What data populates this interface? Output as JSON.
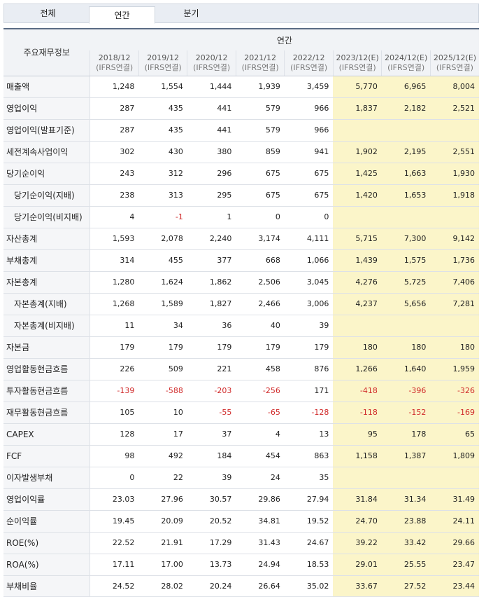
{
  "tabs": [
    {
      "label": "전체",
      "active": false
    },
    {
      "label": "연간",
      "active": true
    },
    {
      "label": "분기",
      "active": false
    }
  ],
  "table": {
    "corner_label": "주요재무정보",
    "group_label": "연간",
    "years": [
      {
        "year": "2018/12",
        "basis": "(IFRS연결)",
        "estimate": false
      },
      {
        "year": "2019/12",
        "basis": "(IFRS연결)",
        "estimate": false
      },
      {
        "year": "2020/12",
        "basis": "(IFRS연결)",
        "estimate": false
      },
      {
        "year": "2021/12",
        "basis": "(IFRS연결)",
        "estimate": false
      },
      {
        "year": "2022/12",
        "basis": "(IFRS연결)",
        "estimate": false
      },
      {
        "year": "2023/12(E)",
        "basis": "(IFRS연결)",
        "estimate": true
      },
      {
        "year": "2024/12(E)",
        "basis": "(IFRS연결)",
        "estimate": true
      },
      {
        "year": "2025/12(E)",
        "basis": "(IFRS연결)",
        "estimate": true
      }
    ],
    "rows": [
      {
        "label": "매출액",
        "indent": false,
        "values": [
          "1,248",
          "1,554",
          "1,444",
          "1,939",
          "3,459",
          "5,770",
          "6,965",
          "8,004"
        ]
      },
      {
        "label": "영업이익",
        "indent": false,
        "values": [
          "287",
          "435",
          "441",
          "579",
          "966",
          "1,837",
          "2,182",
          "2,521"
        ]
      },
      {
        "label": "영업이익(발표기준)",
        "indent": false,
        "values": [
          "287",
          "435",
          "441",
          "579",
          "966",
          "",
          "",
          ""
        ]
      },
      {
        "label": "세전계속사업이익",
        "indent": false,
        "values": [
          "302",
          "430",
          "380",
          "859",
          "941",
          "1,902",
          "2,195",
          "2,551"
        ]
      },
      {
        "label": "당기순이익",
        "indent": false,
        "values": [
          "243",
          "312",
          "296",
          "675",
          "675",
          "1,425",
          "1,663",
          "1,930"
        ]
      },
      {
        "label": "당기순이익(지배)",
        "indent": true,
        "values": [
          "238",
          "313",
          "295",
          "675",
          "675",
          "1,420",
          "1,653",
          "1,918"
        ]
      },
      {
        "label": "당기순이익(비지배)",
        "indent": true,
        "values": [
          "4",
          "-1",
          "1",
          "0",
          "0",
          "",
          "",
          ""
        ]
      },
      {
        "label": "자산총계",
        "indent": false,
        "values": [
          "1,593",
          "2,078",
          "2,240",
          "3,174",
          "4,111",
          "5,715",
          "7,300",
          "9,142"
        ]
      },
      {
        "label": "부채총계",
        "indent": false,
        "values": [
          "314",
          "455",
          "377",
          "668",
          "1,066",
          "1,439",
          "1,575",
          "1,736"
        ]
      },
      {
        "label": "자본총계",
        "indent": false,
        "values": [
          "1,280",
          "1,624",
          "1,862",
          "2,506",
          "3,045",
          "4,276",
          "5,725",
          "7,406"
        ]
      },
      {
        "label": "자본총계(지배)",
        "indent": true,
        "values": [
          "1,268",
          "1,589",
          "1,827",
          "2,466",
          "3,006",
          "4,237",
          "5,656",
          "7,281"
        ]
      },
      {
        "label": "자본총계(비지배)",
        "indent": true,
        "values": [
          "11",
          "34",
          "36",
          "40",
          "39",
          "",
          "",
          ""
        ]
      },
      {
        "label": "자본금",
        "indent": false,
        "values": [
          "179",
          "179",
          "179",
          "179",
          "179",
          "180",
          "180",
          "180"
        ]
      },
      {
        "label": "영업활동현금흐름",
        "indent": false,
        "values": [
          "226",
          "509",
          "221",
          "458",
          "876",
          "1,266",
          "1,640",
          "1,959"
        ]
      },
      {
        "label": "투자활동현금흐름",
        "indent": false,
        "values": [
          "-139",
          "-588",
          "-203",
          "-256",
          "171",
          "-418",
          "-396",
          "-326"
        ]
      },
      {
        "label": "재무활동현금흐름",
        "indent": false,
        "values": [
          "105",
          "10",
          "-55",
          "-65",
          "-128",
          "-118",
          "-152",
          "-169"
        ]
      },
      {
        "label": "CAPEX",
        "indent": false,
        "values": [
          "128",
          "17",
          "37",
          "4",
          "13",
          "95",
          "178",
          "65"
        ]
      },
      {
        "label": "FCF",
        "indent": false,
        "values": [
          "98",
          "492",
          "184",
          "454",
          "863",
          "1,158",
          "1,387",
          "1,809"
        ]
      },
      {
        "label": "이자발생부채",
        "indent": false,
        "values": [
          "0",
          "22",
          "39",
          "24",
          "35",
          "",
          "",
          ""
        ]
      },
      {
        "label": "영업이익률",
        "indent": false,
        "values": [
          "23.03",
          "27.96",
          "30.57",
          "29.86",
          "27.94",
          "31.84",
          "31.34",
          "31.49"
        ]
      },
      {
        "label": "순이익률",
        "indent": false,
        "values": [
          "19.45",
          "20.09",
          "20.52",
          "34.81",
          "19.52",
          "24.70",
          "23.88",
          "24.11"
        ]
      },
      {
        "label": "ROE(%)",
        "indent": false,
        "values": [
          "22.52",
          "21.91",
          "17.29",
          "31.43",
          "24.67",
          "39.22",
          "33.42",
          "29.66"
        ]
      },
      {
        "label": "ROA(%)",
        "indent": false,
        "values": [
          "17.11",
          "17.00",
          "13.73",
          "24.94",
          "18.53",
          "29.01",
          "25.55",
          "23.47"
        ]
      },
      {
        "label": "부채비율",
        "indent": false,
        "values": [
          "24.52",
          "28.02",
          "20.24",
          "26.64",
          "35.02",
          "33.67",
          "27.52",
          "23.44"
        ]
      }
    ]
  },
  "colors": {
    "estimate_bg": "#fbf5c9",
    "negative_text": "#d02a2a",
    "header_bg": "#f1f3f6",
    "header_rule": "#5b6b84"
  }
}
